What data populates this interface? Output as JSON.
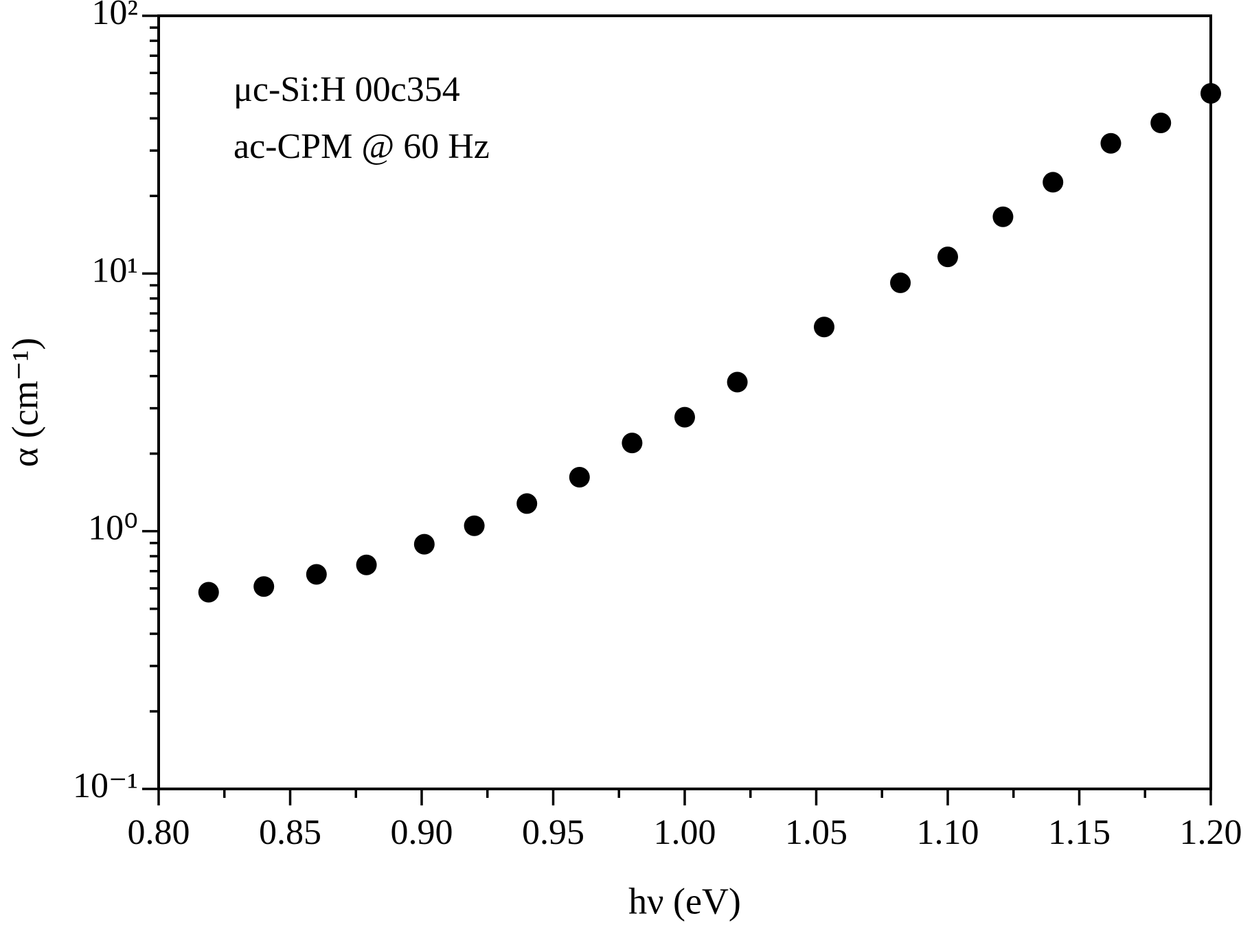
{
  "chart_data": {
    "type": "scatter",
    "annotations": [
      "μc-Si:H 00c354",
      "ac-CPM @ 60 Hz"
    ],
    "xlabel": "hν (eV)",
    "ylabel": "α (cm⁻¹)",
    "x": [
      0.819,
      0.84,
      0.86,
      0.879,
      0.901,
      0.92,
      0.94,
      0.96,
      0.98,
      1.0,
      1.02,
      1.053,
      1.082,
      1.1,
      1.121,
      1.14,
      1.162,
      1.181,
      1.2
    ],
    "series": [
      {
        "color": "#000000",
        "values": [
          0.58,
          0.61,
          0.68,
          0.74,
          0.89,
          1.05,
          1.28,
          1.62,
          2.2,
          2.77,
          3.79,
          6.2,
          9.2,
          11.6,
          16.6,
          22.6,
          32,
          38.4,
          50
        ]
      }
    ],
    "xlim": [
      0.8,
      1.2
    ],
    "xticks": [
      {
        "value": 0.8,
        "label": "0.80"
      },
      {
        "value": 0.85,
        "label": "0.85"
      },
      {
        "value": 0.9,
        "label": "0.90"
      },
      {
        "value": 0.95,
        "label": "0.95"
      },
      {
        "value": 1.0,
        "label": "1.00"
      },
      {
        "value": 1.05,
        "label": "1.05"
      },
      {
        "value": 1.1,
        "label": "1.10"
      },
      {
        "value": 1.15,
        "label": "1.15"
      },
      {
        "value": 1.2,
        "label": "1.20"
      }
    ],
    "xminorticks": [
      0.825,
      0.875,
      0.925,
      0.975,
      1.025,
      1.075,
      1.125,
      1.175
    ],
    "ylim": [
      0.1,
      100
    ],
    "ylog": true,
    "yticks": [
      {
        "value": 0.1,
        "label": "10⁻¹"
      },
      {
        "value": 1,
        "label": "10⁰"
      },
      {
        "value": 10,
        "label": "10¹"
      },
      {
        "value": 100,
        "label": "10²"
      }
    ],
    "yminorticks": [
      0.2,
      0.3,
      0.4,
      0.5,
      0.6,
      0.7,
      0.8,
      0.9,
      2,
      3,
      4,
      5,
      6,
      7,
      8,
      9,
      20,
      30,
      40,
      50,
      60,
      70,
      80,
      90
    ],
    "grid": false
  }
}
